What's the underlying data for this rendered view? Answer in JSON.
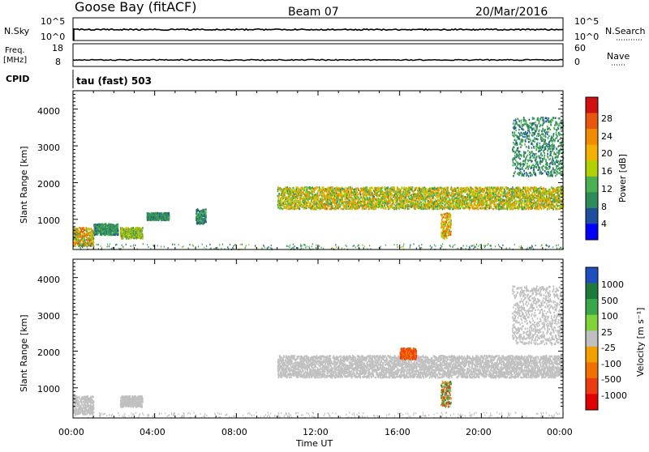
{
  "header": {
    "station": "Goose Bay (fitACF)",
    "beam": "Beam 07",
    "date": "20/Mar/2016"
  },
  "status_panels": {
    "nsky_label": "N.Sky",
    "nsearch_label": "N.Search",
    "nsky_ticks": [
      "10^5",
      "10^0"
    ],
    "nsearch_ticks": [
      "10^5",
      "10^0"
    ],
    "freq_label": "Freq.",
    "freq_unit": "[MHz]",
    "freq_ticks": [
      "18",
      "8"
    ],
    "nave_label": "Nave",
    "nave_ticks": [
      "60",
      "0"
    ],
    "cpid_label": "CPID",
    "cpid_text": "tau (fast) 503"
  },
  "colorbars": {
    "power": {
      "label": "Power [dB]",
      "ticks": [
        "28",
        "24",
        "20",
        "16",
        "12",
        "8",
        "4"
      ],
      "colors": [
        "#d11010",
        "#e8560f",
        "#f08c00",
        "#f2b000",
        "#b0d000",
        "#4caf50",
        "#2e8b57",
        "#1f4f9c",
        "#0000ff"
      ]
    },
    "velocity": {
      "label": "Velocity [m s⁻¹]",
      "ticks": [
        "1000",
        "500",
        "100",
        "25",
        "-25",
        "-100",
        "-500",
        "-1000"
      ],
      "colors": [
        "#1f4fbf",
        "#1e7a3c",
        "#3aa84a",
        "#7fd43a",
        "#c0c0c0",
        "#f2a000",
        "#f07000",
        "#ee3a10",
        "#e00000"
      ]
    }
  },
  "axes": {
    "ylabel": "Slant Range [km]",
    "yticks": [
      "4000",
      "3000",
      "2000",
      "1000"
    ],
    "xticks": [
      "00:00",
      "04:00",
      "08:00",
      "12:00",
      "16:00",
      "20:00",
      "00:00"
    ],
    "xlabel": "Time UT"
  },
  "chart_data": [
    {
      "type": "heatmap",
      "title": "",
      "quantity": "Power",
      "unit": "dB",
      "ylabel": "Slant Range [km]",
      "xlabel": "Time UT",
      "xlim_hours": [
        0,
        24
      ],
      "ylim_km": [
        180,
        4500
      ],
      "clim": [
        0,
        30
      ],
      "features": [
        {
          "t_start": 0.0,
          "t_end": 1.0,
          "range_km": [
            300,
            800
          ],
          "power_db": [
            8,
            28
          ]
        },
        {
          "t_start": 1.0,
          "t_end": 2.2,
          "range_km": [
            600,
            900
          ],
          "power_db": [
            4,
            12
          ]
        },
        {
          "t_start": 2.3,
          "t_end": 3.4,
          "range_km": [
            500,
            800
          ],
          "power_db": [
            8,
            20
          ]
        },
        {
          "t_start": 3.6,
          "t_end": 4.7,
          "range_km": [
            1000,
            1200
          ],
          "power_db": [
            4,
            12
          ]
        },
        {
          "t_start": 6.0,
          "t_end": 6.5,
          "range_km": [
            900,
            1300
          ],
          "power_db": [
            4,
            12
          ]
        },
        {
          "t_start": 10.0,
          "t_end": 24.0,
          "range_km": [
            1300,
            1900
          ],
          "power_db": [
            8,
            24
          ]
        },
        {
          "t_start": 18.0,
          "t_end": 18.5,
          "range_km": [
            500,
            1200
          ],
          "power_db": [
            12,
            28
          ]
        },
        {
          "t_start": 21.5,
          "t_end": 24.0,
          "range_km": [
            2200,
            3800
          ],
          "power_db": [
            4,
            12
          ]
        }
      ]
    },
    {
      "type": "heatmap",
      "title": "",
      "quantity": "Velocity",
      "unit": "m s^-1",
      "ylabel": "Slant Range [km]",
      "xlabel": "Time UT",
      "xlim_hours": [
        0,
        24
      ],
      "ylim_km": [
        180,
        4500
      ],
      "clim": [
        -1000,
        1000
      ],
      "features": [
        {
          "t_start": 0.0,
          "t_end": 1.0,
          "range_km": [
            300,
            800
          ],
          "velocity": [
            -25,
            25
          ]
        },
        {
          "t_start": 2.3,
          "t_end": 3.4,
          "range_km": [
            500,
            800
          ],
          "velocity": [
            -25,
            25
          ]
        },
        {
          "t_start": 10.0,
          "t_end": 24.0,
          "range_km": [
            1300,
            1900
          ],
          "velocity": [
            -25,
            25
          ]
        },
        {
          "t_start": 16.0,
          "t_end": 16.8,
          "range_km": [
            1800,
            2100
          ],
          "velocity": [
            -500,
            -100
          ]
        },
        {
          "t_start": 18.0,
          "t_end": 18.5,
          "range_km": [
            500,
            1200
          ],
          "velocity": [
            -500,
            500
          ]
        },
        {
          "t_start": 21.5,
          "t_end": 24.0,
          "range_km": [
            2200,
            3800
          ],
          "velocity": [
            -25,
            25
          ]
        }
      ]
    }
  ]
}
